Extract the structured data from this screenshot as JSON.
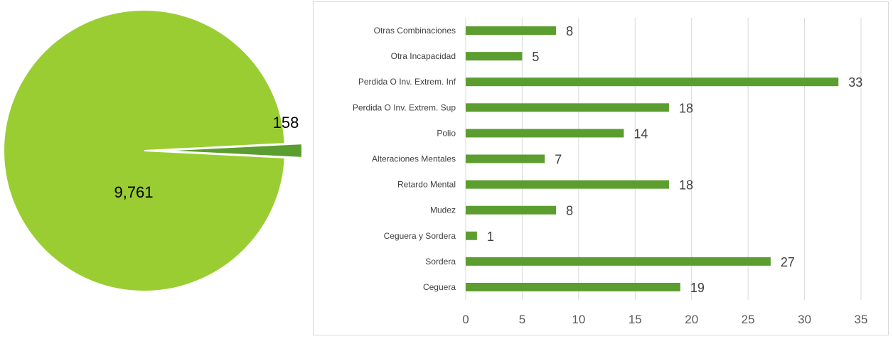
{
  "chart_data": [
    {
      "type": "pie",
      "slices": [
        {
          "value": 9761,
          "label": "9,761",
          "color": "#9ACD32"
        },
        {
          "value": 158,
          "label": "158",
          "color": "#5B9E2F"
        }
      ]
    },
    {
      "type": "bar",
      "orientation": "horizontal",
      "categories": [
        "Otras Combinaciones",
        "Otra Incapacidad",
        "Perdida O Inv. Extrem. Inf",
        "Perdida O Inv. Extrem. Sup",
        "Polio",
        "Alteraciones Mentales",
        "Retardo Mental",
        "Mudez",
        "Ceguera y Sordera",
        "Sordera",
        "Ceguera"
      ],
      "values": [
        8,
        5,
        33,
        18,
        14,
        7,
        18,
        8,
        1,
        27,
        19
      ],
      "xlim": [
        0,
        35
      ],
      "xticks": [
        "0",
        "5",
        "10",
        "15",
        "20",
        "25",
        "30",
        "35"
      ],
      "grid": true,
      "bar_color": "#5B9E2F"
    }
  ]
}
